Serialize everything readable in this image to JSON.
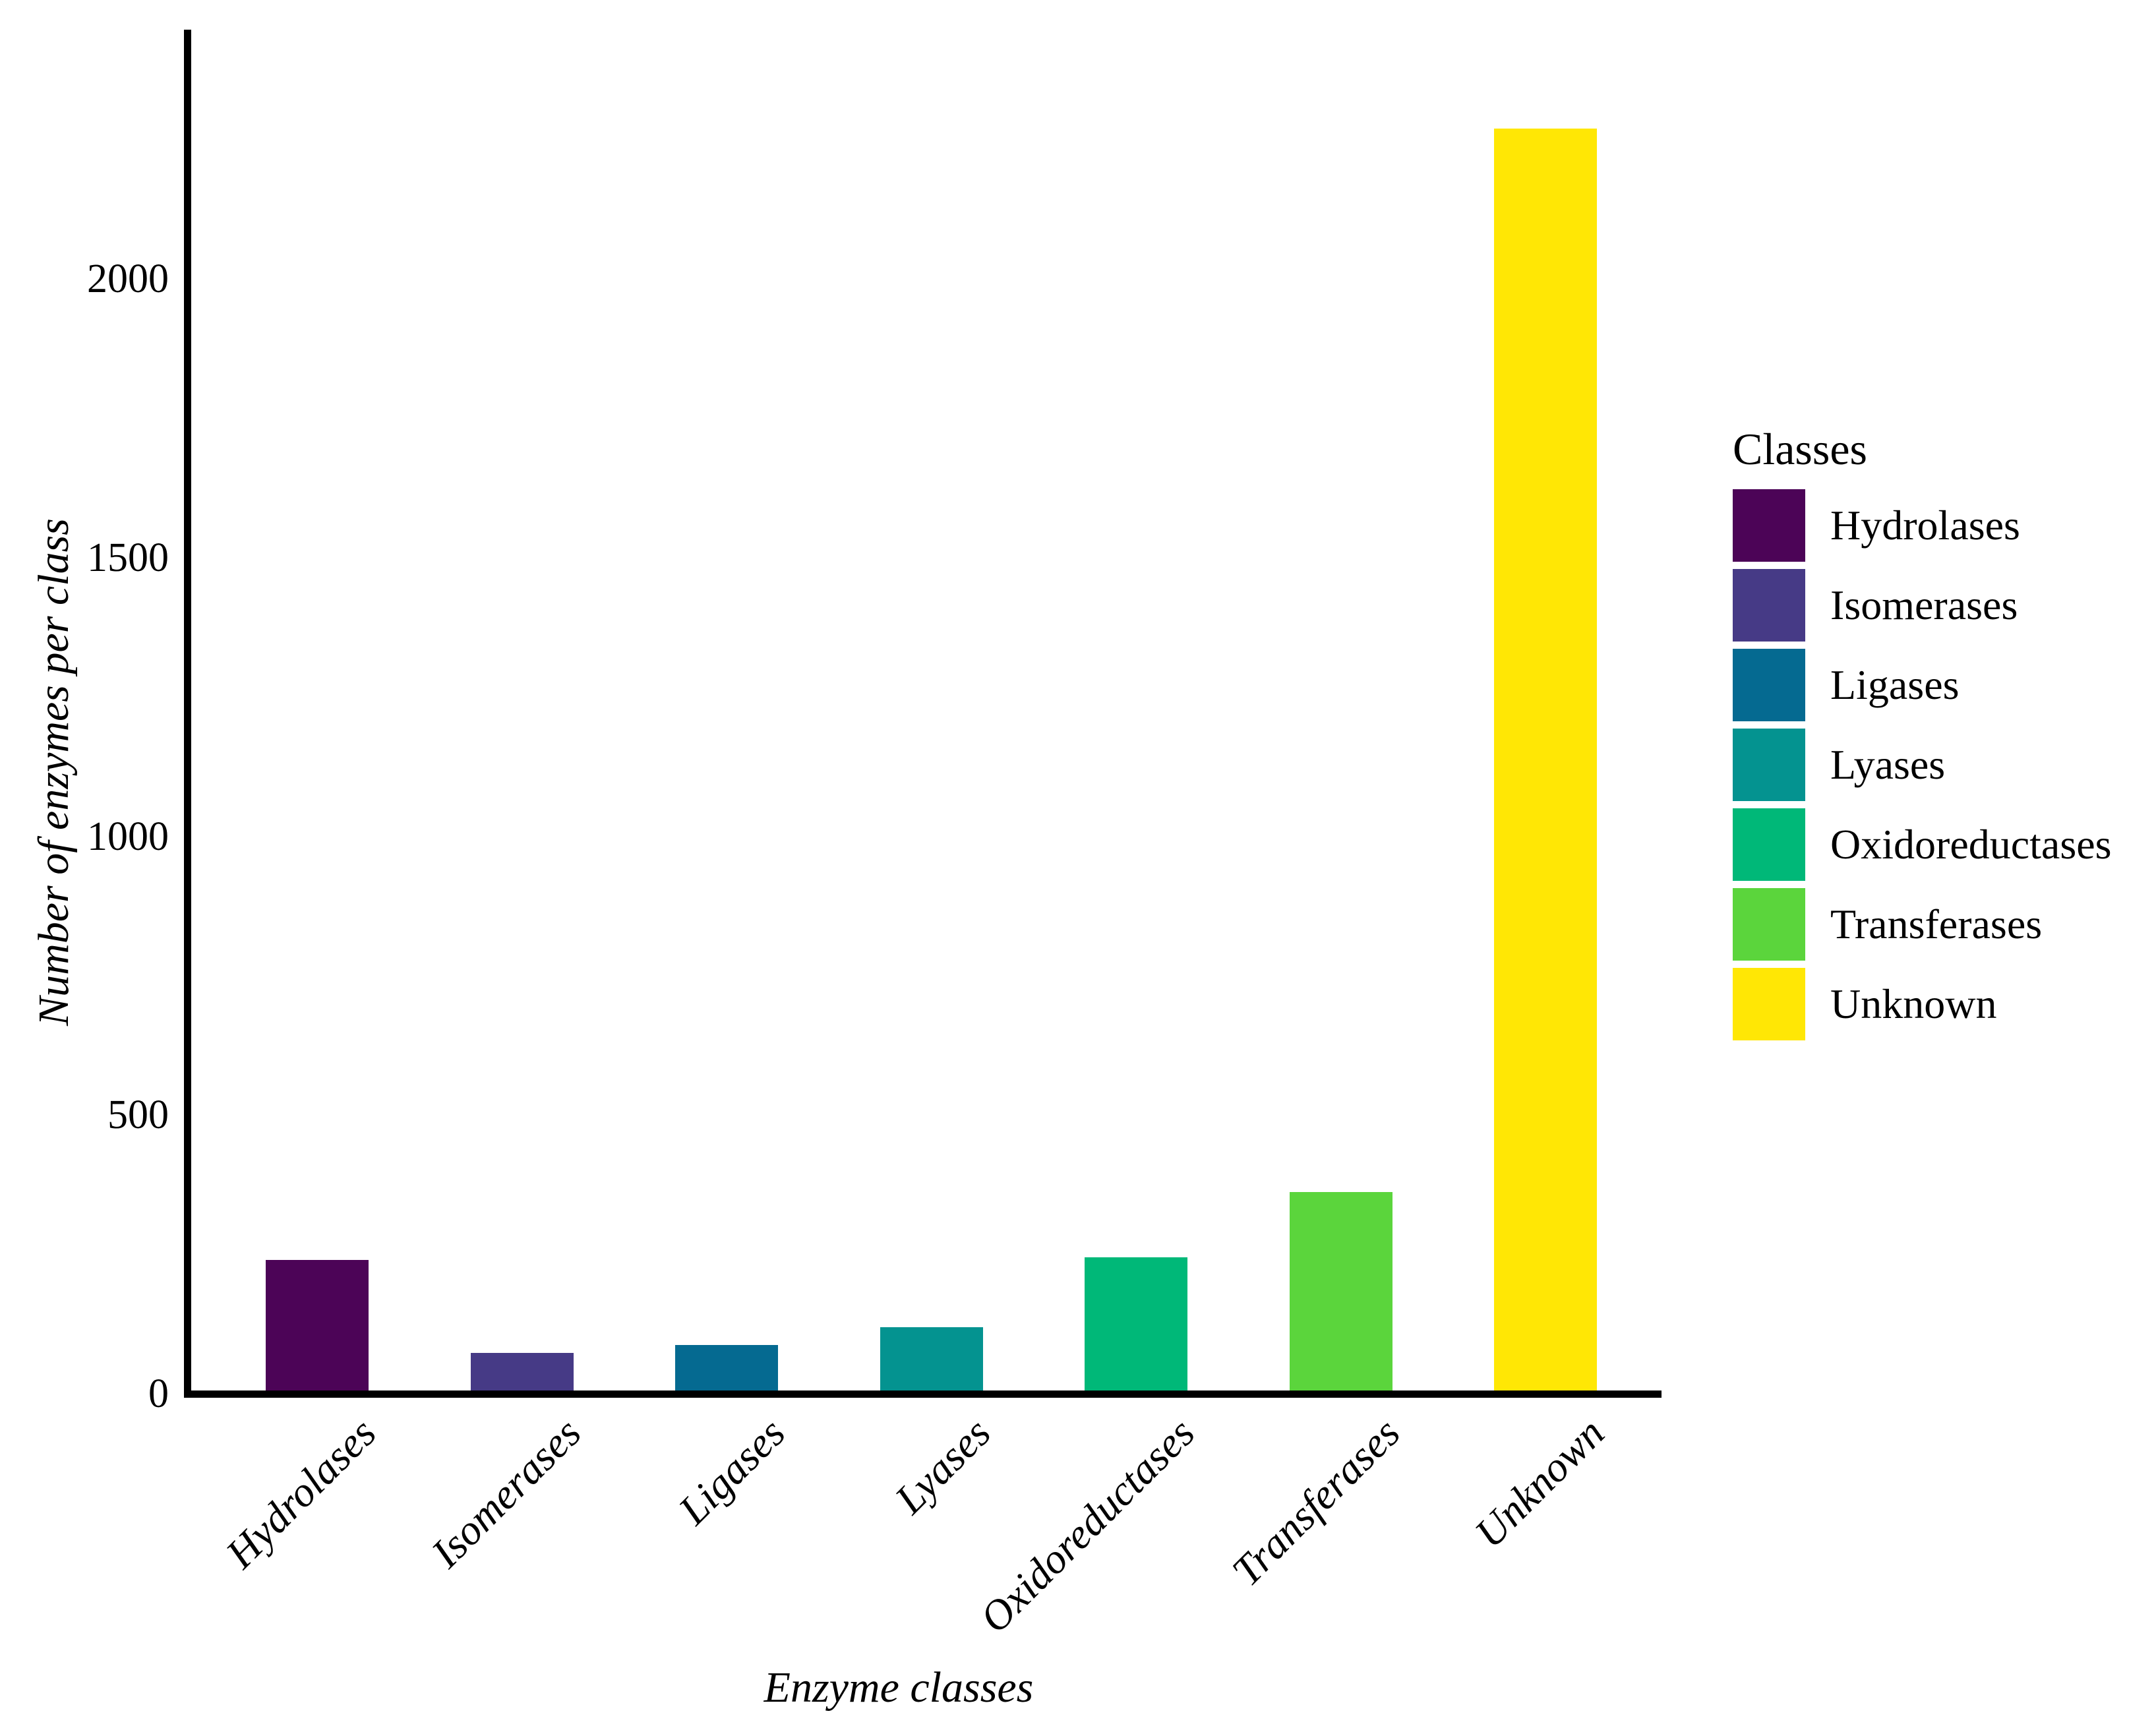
{
  "chart_data": {
    "type": "bar",
    "title": "",
    "xlabel": "Enzyme classes",
    "ylabel": "Number of enzymes per class",
    "categories": [
      "Hydrolases",
      "Isomerases",
      "Ligases",
      "Lyases",
      "Oxidoreductases",
      "Transferases",
      "Unknown"
    ],
    "values": [
      240,
      73,
      87,
      119,
      245,
      362,
      2270
    ],
    "colors": [
      "#4C0457",
      "#463A86",
      "#056A91",
      "#049390",
      "#00B878",
      "#5BD53C",
      "#FFE705"
    ],
    "yticks": [
      0,
      500,
      1000,
      1500,
      2000
    ],
    "ylim": [
      0,
      2447
    ],
    "grid": false,
    "axis_color": "#000000",
    "background": "#FFFFFF",
    "legend": {
      "title": "Classes",
      "position": "right",
      "entries": [
        "Hydrolases",
        "Isomerases",
        "Ligases",
        "Lyases",
        "Oxidoreductases",
        "Transferases",
        "Unknown"
      ]
    }
  }
}
